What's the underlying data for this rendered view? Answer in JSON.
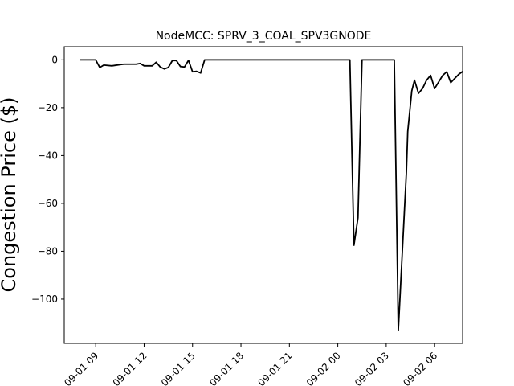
{
  "chart_data": {
    "type": "line",
    "title": "NodeMCC: SPRV_3_COAL_SPV3GNODE",
    "xlabel": "",
    "ylabel": "Congestion Price ($)",
    "xlim": [
      "2024-09-01 07:03",
      "2024-09-02 07:44"
    ],
    "ylim": [
      -118.5,
      5.5
    ],
    "grid": false,
    "xticks": [
      {
        "t": "2024-09-01 09:00",
        "label": "09-01 09"
      },
      {
        "t": "2024-09-01 12:00",
        "label": "09-01 12"
      },
      {
        "t": "2024-09-01 15:00",
        "label": "09-01 15"
      },
      {
        "t": "2024-09-01 18:00",
        "label": "09-01 18"
      },
      {
        "t": "2024-09-01 21:00",
        "label": "09-01 21"
      },
      {
        "t": "2024-09-02 00:00",
        "label": "09-02 00"
      },
      {
        "t": "2024-09-02 03:00",
        "label": "09-02 03"
      },
      {
        "t": "2024-09-02 06:00",
        "label": "09-02 06"
      }
    ],
    "yticks": [
      0,
      -20,
      -40,
      -60,
      -80,
      -100
    ],
    "series": [
      {
        "color": "#000000",
        "points": [
          [
            "2024-09-01 08:00",
            0
          ],
          [
            "2024-09-01 09:00",
            0
          ],
          [
            "2024-09-01 09:15",
            -3.2
          ],
          [
            "2024-09-01 09:30",
            -2.2
          ],
          [
            "2024-09-01 10:00",
            -2.5
          ],
          [
            "2024-09-01 10:30",
            -2.0
          ],
          [
            "2024-09-01 10:45",
            -1.8
          ],
          [
            "2024-09-01 11:30",
            -1.8
          ],
          [
            "2024-09-01 11:45",
            -1.5
          ],
          [
            "2024-09-01 12:00",
            -2.5
          ],
          [
            "2024-09-01 12:30",
            -2.5
          ],
          [
            "2024-09-01 12:45",
            -1.0
          ],
          [
            "2024-09-01 13:00",
            -3.0
          ],
          [
            "2024-09-01 13:15",
            -3.8
          ],
          [
            "2024-09-01 13:30",
            -3.2
          ],
          [
            "2024-09-01 13:45",
            -0.3
          ],
          [
            "2024-09-01 14:00",
            -0.3
          ],
          [
            "2024-09-01 14:15",
            -2.8
          ],
          [
            "2024-09-01 14:30",
            -3.0
          ],
          [
            "2024-09-01 14:45",
            -0.2
          ],
          [
            "2024-09-01 15:00",
            -5.0
          ],
          [
            "2024-09-01 15:15",
            -4.8
          ],
          [
            "2024-09-01 15:30",
            -5.5
          ],
          [
            "2024-09-01 15:45",
            0
          ],
          [
            "2024-09-01 21:00",
            0
          ],
          [
            "2024-09-02 00:45",
            0
          ],
          [
            "2024-09-02 01:00",
            -77.5
          ],
          [
            "2024-09-02 01:15",
            -66.0
          ],
          [
            "2024-09-02 01:30",
            0
          ],
          [
            "2024-09-02 03:30",
            0
          ],
          [
            "2024-09-02 03:45",
            -113.0
          ],
          [
            "2024-09-02 04:00",
            -80.0
          ],
          [
            "2024-09-02 04:15",
            -47.0
          ],
          [
            "2024-09-02 04:20",
            -30.0
          ],
          [
            "2024-09-02 04:35",
            -13.0
          ],
          [
            "2024-09-02 04:45",
            -8.5
          ],
          [
            "2024-09-02 05:00",
            -14.0
          ],
          [
            "2024-09-02 05:15",
            -12.0
          ],
          [
            "2024-09-02 05:30",
            -8.5
          ],
          [
            "2024-09-02 05:45",
            -6.5
          ],
          [
            "2024-09-02 06:00",
            -12.0
          ],
          [
            "2024-09-02 06:30",
            -6.5
          ],
          [
            "2024-09-02 06:45",
            -5.0
          ],
          [
            "2024-09-02 07:00",
            -9.5
          ],
          [
            "2024-09-02 07:30",
            -6.0
          ],
          [
            "2024-09-02 07:45",
            -4.8
          ]
        ]
      }
    ]
  }
}
